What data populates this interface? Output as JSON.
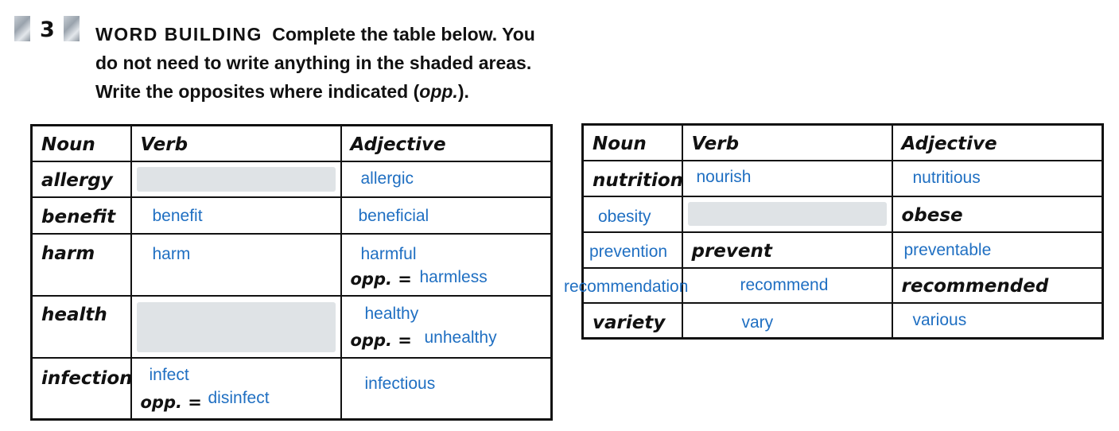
{
  "exercise": {
    "number": "3",
    "heading": "WORD BUILDING",
    "instruction_line1": "Complete the table below. You",
    "instruction_line2": "do not need to write anything in the shaded areas.",
    "instruction_line3_pre": "Write the opposites where indicated (",
    "instruction_line3_em": "opp.",
    "instruction_line3_post": ")."
  },
  "headers": {
    "noun": "Noun",
    "verb": "Verb",
    "adjective": "Adjective"
  },
  "opp_label": "opp. =",
  "left_table": [
    {
      "noun": "allergy",
      "verb": "",
      "verb_shaded": true,
      "adjective": "allergic"
    },
    {
      "noun": "benefit",
      "verb": "benefit",
      "adjective": "beneficial"
    },
    {
      "noun": "harm",
      "verb": "harm",
      "adjective": "harmful",
      "adjective_opp": "harmless"
    },
    {
      "noun": "health",
      "verb": "",
      "verb_shaded": true,
      "adjective": "healthy",
      "adjective_opp": "unhealthy"
    },
    {
      "noun": "infection",
      "verb": "infect",
      "verb_opp": "disinfect",
      "adjective": "infectious"
    }
  ],
  "right_table": [
    {
      "noun": "nutrition",
      "verb": "nourish",
      "adjective": "nutritious"
    },
    {
      "noun": "obesity",
      "verb": "",
      "verb_shaded": true,
      "adjective": "obese"
    },
    {
      "noun": "prevention",
      "verb": "prevent",
      "adjective": "preventable"
    },
    {
      "noun": "recommendation",
      "verb": "recommend",
      "adjective": "recommended"
    },
    {
      "noun": "variety",
      "verb": "vary",
      "adjective": "various"
    }
  ],
  "colors": {
    "answer_ink": "#1f6fc2",
    "shade": "#dfe3e6",
    "border": "#111111"
  }
}
